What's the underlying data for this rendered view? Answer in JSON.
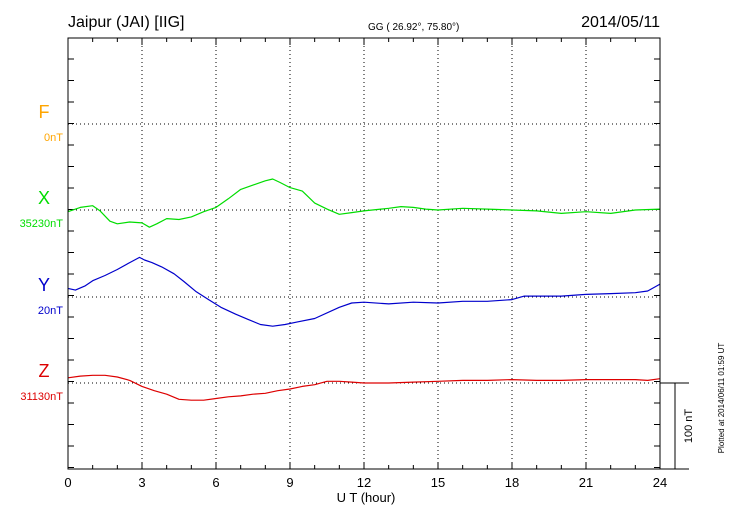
{
  "header": {
    "station": "Jaipur (JAI)  [IIG]",
    "coords": "GG ( 26.92°,  75.80°)",
    "date": "2014/05/11"
  },
  "footer": {
    "plotted": "Plotted at 2014/06/11 01:59 UT"
  },
  "chart_data": {
    "type": "line",
    "title": "Jaipur (JAI)  [IIG]",
    "xlabel": "U T (hour)",
    "ylabel": "",
    "xlim": [
      0,
      24
    ],
    "x_ticks": [
      "0",
      "3",
      "6",
      "9",
      "12",
      "15",
      "18",
      "21",
      "24"
    ],
    "grid": true,
    "scale_bar": {
      "label": "100 nT",
      "value_nT": 100
    },
    "series": [
      {
        "name": "F",
        "baseline_label": "0nT",
        "baseline_nT": 0,
        "color": "#ffa500",
        "x": [],
        "values": []
      },
      {
        "name": "X",
        "baseline_label": "35230nT",
        "baseline_nT": 35230,
        "color": "#00dd00",
        "x": [
          0,
          0.5,
          1.0,
          1.3,
          1.7,
          2.0,
          2.5,
          3.0,
          3.3,
          3.6,
          4.0,
          4.5,
          5.0,
          5.5,
          6.0,
          6.5,
          7.0,
          7.5,
          8.0,
          8.3,
          8.6,
          9.0,
          9.5,
          10.0,
          10.5,
          11.0,
          11.5,
          12.0,
          13.0,
          13.5,
          14.0,
          14.5,
          15.0,
          16.0,
          17.0,
          18.0,
          19.0,
          20.0,
          21.0,
          22.0,
          23.0,
          24.0
        ],
        "values": [
          35228,
          35233,
          35235,
          35229,
          35217,
          35214,
          35216,
          35215,
          35210,
          35214,
          35220,
          35219,
          35222,
          35228,
          35233,
          35243,
          35254,
          35259,
          35264,
          35266,
          35262,
          35256,
          35252,
          35238,
          35231,
          35225,
          35227,
          35229,
          35232,
          35234,
          35233,
          35231,
          35230,
          35232,
          35231,
          35230,
          35229,
          35226,
          35228,
          35226,
          35230,
          35231
        ]
      },
      {
        "name": "Y",
        "baseline_label": "20nT",
        "baseline_nT": 20,
        "color": "#0000cc",
        "x": [
          0,
          0.3,
          0.7,
          1.0,
          1.5,
          2.0,
          2.5,
          2.9,
          3.1,
          3.4,
          3.8,
          4.3,
          4.7,
          5.2,
          5.7,
          6.2,
          6.8,
          7.3,
          7.8,
          8.3,
          8.8,
          9.3,
          10.0,
          11.0,
          11.5,
          12.0,
          13.0,
          14.0,
          15.0,
          16.0,
          17.0,
          18.0,
          18.5,
          19.0,
          20.0,
          21.0,
          22.0,
          23.0,
          23.5,
          24.0
        ],
        "values": [
          30,
          28,
          33,
          39,
          45,
          52,
          60,
          66,
          63,
          60,
          55,
          47,
          38,
          26,
          17,
          8,
          0,
          -6,
          -12,
          -14,
          -12,
          -9,
          -5,
          8,
          13,
          14,
          12,
          14,
          13,
          15,
          15,
          17,
          21,
          21,
          21,
          23,
          24,
          25,
          27,
          35
        ]
      },
      {
        "name": "Z",
        "baseline_label": "31130nT",
        "baseline_nT": 31130,
        "color": "#dd0000",
        "x": [
          0,
          0.5,
          1.0,
          1.5,
          2.0,
          2.5,
          3.0,
          3.5,
          4.0,
          4.5,
          5.0,
          5.5,
          6.0,
          6.5,
          7.0,
          7.5,
          8.0,
          8.5,
          9.0,
          9.5,
          10.0,
          10.5,
          11.0,
          11.5,
          12.0,
          13.0,
          14.0,
          15.0,
          16.0,
          17.0,
          18.0,
          19.0,
          20.0,
          21.0,
          22.0,
          23.0,
          23.5,
          24.0
        ],
        "values": [
          31136,
          31138,
          31139,
          31139,
          31137,
          31133,
          31126,
          31121,
          31117,
          31111,
          31110,
          31110,
          31112,
          31114,
          31115,
          31117,
          31118,
          31121,
          31123,
          31126,
          31128,
          31132,
          31132,
          31131,
          31130,
          31130,
          31131,
          31132,
          31133,
          31133,
          31134,
          31133,
          31133,
          31134,
          31134,
          31134,
          31133,
          31135
        ]
      }
    ]
  }
}
